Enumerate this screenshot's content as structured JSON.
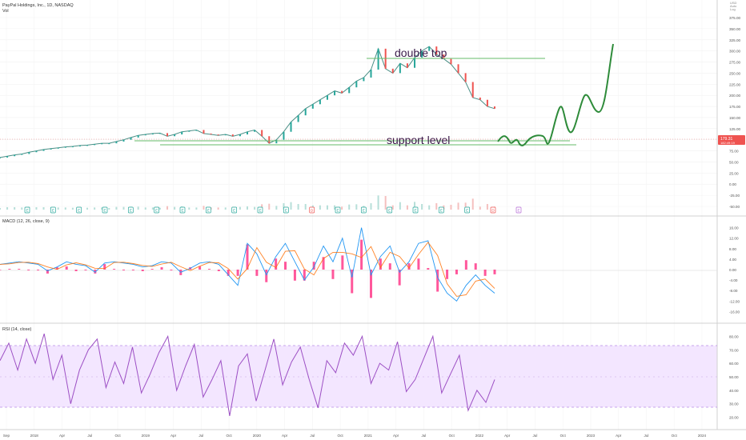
{
  "header": {
    "symbol_title": "PayPal Holdings, Inc., 1D, NASDAQ",
    "volume_label": "Vol",
    "top_right_lines": [
      "USD",
      "Auto",
      "Log"
    ]
  },
  "price_badge": {
    "value": "179.31",
    "sub": "182:49:19"
  },
  "colors": {
    "up": "#26a69a",
    "down": "#ef5350",
    "annotation_line": "#66bb6a",
    "projection": "#2e8b3a",
    "macd": "#2196f3",
    "signal": "#ff6d00",
    "hist": "#ff1f7a",
    "rsi": "#9c4fc4",
    "rsi_band": "#f3e6ff",
    "earnings_badge": "#26a69a",
    "dividend_badge": "#ef5350",
    "axis_text": "#555555"
  },
  "annotations": {
    "double_top_label": "double top",
    "support_label": "support level"
  },
  "panes": {
    "macd_label": "MACD (12, 26, close, 9)",
    "rsi_label": "RSI (14, close)"
  },
  "x_axis": {
    "labels": [
      "Sep",
      "2018",
      "Apr",
      "Jul",
      "Oct",
      "2019",
      "Apr",
      "Jul",
      "Oct",
      "2020",
      "Apr",
      "Jul",
      "Oct",
      "2021",
      "Apr",
      "Jul",
      "Oct",
      "2022",
      "Apr",
      "Jul",
      "Oct",
      "2023",
      "Apr",
      "Jul",
      "Oct",
      "2024"
    ]
  },
  "events": {
    "markers": [
      "E",
      "E",
      "E",
      "E",
      "E",
      "E",
      "E",
      "E",
      "E",
      "E",
      "E",
      "D",
      "E",
      "E",
      "E",
      "E",
      "E",
      "E",
      "D"
    ],
    "future_marker": "E"
  },
  "chart_data": [
    {
      "type": "line",
      "title": "PayPal Holdings, Inc., 1D, NASDAQ",
      "y_axis_ticks": [
        "375.00",
        "350.00",
        "325.00",
        "300.00",
        "275.00",
        "250.00",
        "225.00",
        "200.00",
        "175.00",
        "150.00",
        "125.00",
        "100.00",
        "75.00",
        "50.00",
        "25.00",
        "0.00",
        "-25.00",
        "-50.00"
      ],
      "ylim": [
        -50,
        375
      ],
      "x_labels": [
        "Sep 2017",
        "2018",
        "Apr",
        "Jul",
        "Oct",
        "2019",
        "Apr",
        "Jul",
        "Oct",
        "2020",
        "Apr",
        "Jul",
        "Oct",
        "2021",
        "Apr",
        "Jul",
        "Oct",
        "2022"
      ],
      "series": [
        {
          "values": [
            60,
            63,
            66,
            68,
            72,
            75,
            78,
            80,
            82,
            84,
            85,
            87,
            88,
            90,
            92,
            92,
            96,
            100,
            105,
            110,
            112,
            114,
            115,
            108,
            112,
            118,
            120,
            122,
            114,
            112,
            110,
            112,
            108,
            112,
            118,
            122,
            108,
            92,
            100,
            118,
            140,
            155,
            170,
            180,
            190,
            200,
            210,
            205,
            218,
            232,
            240,
            258,
            305,
            260,
            250,
            272,
            262,
            285,
            300,
            310,
            292,
            282,
            270,
            250,
            230,
            195,
            190,
            175,
            170
          ]
        }
      ]
    },
    {
      "type": "line",
      "title": "MACD (12, 26, close, 9)",
      "y_axis_ticks": [
        "16.00",
        "12.00",
        "8.00",
        "4.00",
        "0.00",
        "-4.00",
        "-8.00",
        "-12.00",
        "-16.00"
      ],
      "ylim": [
        -18,
        18
      ],
      "series": [
        {
          "name": "MACD",
          "values": [
            2,
            2.5,
            3,
            2.5,
            2,
            -0.5,
            1,
            3,
            2,
            1.5,
            -1,
            2.5,
            3,
            2.5,
            2,
            1,
            1.5,
            3,
            2.5,
            -1,
            0.5,
            2.5,
            3,
            2,
            -2,
            -6,
            10,
            6,
            -2,
            5,
            10,
            3,
            -4,
            1,
            9,
            3,
            12,
            -3,
            16,
            -2,
            5,
            9,
            -1,
            3,
            10,
            11,
            -3,
            -9,
            -12,
            -6,
            -2,
            -6,
            -9
          ]
        }
      ]
    },
    {
      "type": "line",
      "title": "RSI (14, close)",
      "y_axis_ticks": [
        "80.00",
        "70.00",
        "60.00",
        "50.00",
        "40.00",
        "30.00",
        "20.00"
      ],
      "ylim": [
        15,
        85
      ],
      "series": [
        {
          "name": "RSI",
          "values": [
            62,
            75,
            55,
            78,
            60,
            82,
            48,
            66,
            30,
            55,
            70,
            78,
            42,
            61,
            45,
            72,
            38,
            52,
            68,
            80,
            40,
            58,
            74,
            35,
            48,
            62,
            21,
            58,
            67,
            32,
            55,
            78,
            44,
            61,
            72,
            48,
            27,
            62,
            53,
            75,
            66,
            80,
            45,
            60,
            55,
            76,
            39,
            48,
            64,
            80,
            38,
            52,
            66,
            25,
            40,
            31,
            48
          ]
        }
      ]
    }
  ]
}
